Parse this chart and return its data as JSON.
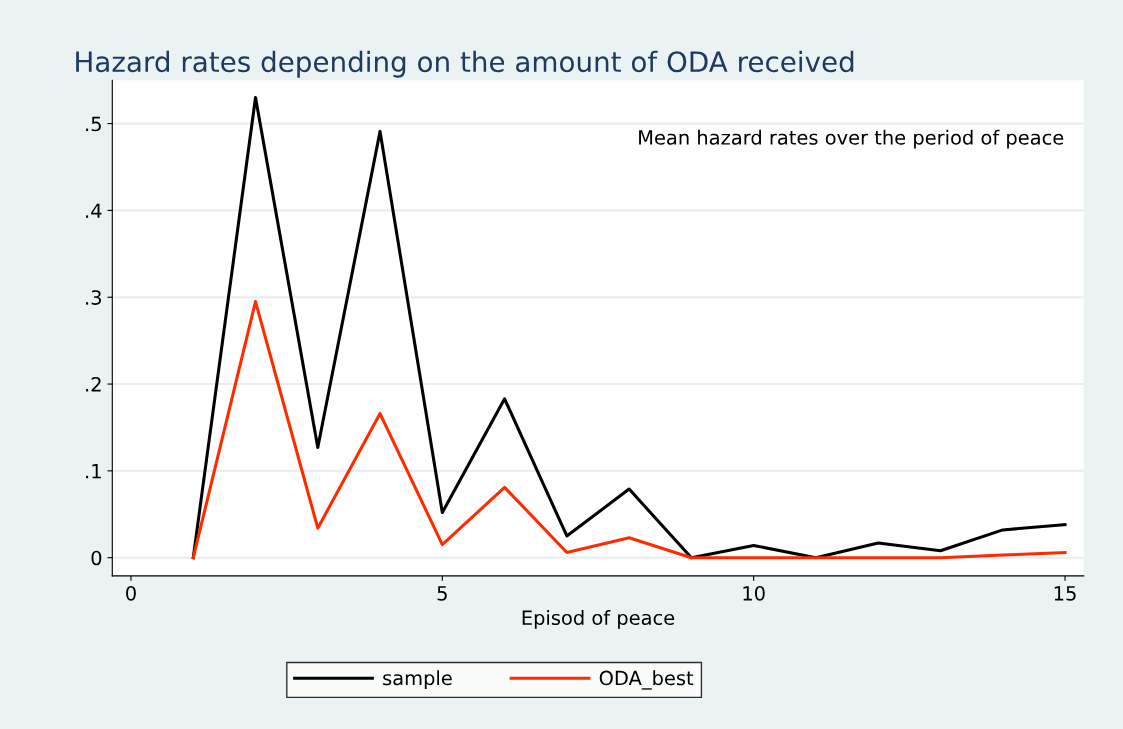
{
  "chart_data": {
    "type": "line",
    "title": "Hazard rates depending on the amount of ODA received",
    "xlabel": "Episod of peace",
    "x": [
      1,
      2,
      3,
      4,
      5,
      6,
      7,
      8,
      9,
      10,
      11,
      12,
      13,
      14,
      15
    ],
    "series": [
      {
        "name": "sample",
        "color": "#000000",
        "values": [
          0,
          0.53,
          0.127,
          0.491,
          0.052,
          0.183,
          0.025,
          0.079,
          0,
          0.014,
          0,
          0.017,
          0.008,
          0.032,
          0.038
        ]
      },
      {
        "name": "ODA_best",
        "color": "#ff2a00",
        "values": [
          0,
          0.295,
          0.034,
          0.166,
          0.015,
          0.081,
          0.006,
          0.023,
          0,
          0,
          0,
          0,
          0,
          0.003,
          0.006
        ]
      }
    ],
    "xlim": [
      -0.3,
      15.3
    ],
    "xticks": [
      0,
      5,
      10,
      15
    ],
    "ylim": [
      -0.021,
      0.55
    ],
    "yticks": [
      {
        "value": 0,
        "label": "0"
      },
      {
        "value": 0.1,
        "label": ".1"
      },
      {
        "value": 0.2,
        "label": ".2"
      },
      {
        "value": 0.3,
        "label": ".3"
      },
      {
        "value": 0.4,
        "label": ".4"
      },
      {
        "value": 0.5,
        "label": ".5"
      }
    ],
    "grid": "y",
    "legend": "bottom",
    "marker": "none",
    "line_style": "solid",
    "annotations": [
      "Mean hazard rates over the period of peace"
    ]
  }
}
